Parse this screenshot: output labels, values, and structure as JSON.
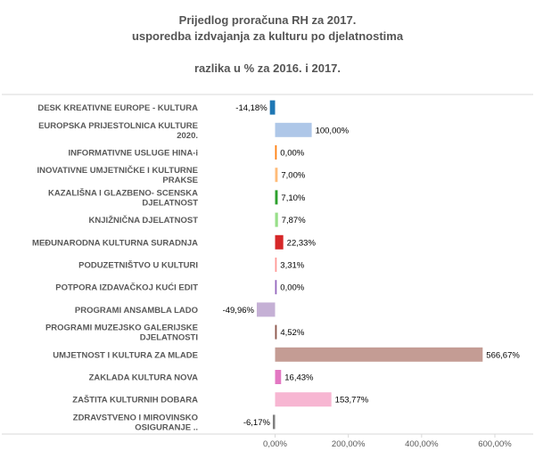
{
  "chart_data": {
    "type": "bar",
    "orientation": "horizontal",
    "title_lines": [
      "Prijedlog proračuna RH  za 2017.",
      "usporedba izdvajanja za kulturu po djelatnostima",
      "razlika u % za 2016. i 2017."
    ],
    "categories": [
      [
        "DESK KREATIVNE EUROPE - KULTURA"
      ],
      [
        "EUROPSKA PRIJESTOLNICA KULTURE",
        "2020."
      ],
      [
        "INFORMATIVNE USLUGE HINA-i"
      ],
      [
        "INOVATIVNE UMJETNIČKE I KULTURNE",
        "PRAKSE"
      ],
      [
        "KAZALIŠNA I GLAZBENO- SCENSKA",
        "DJELATNOST"
      ],
      [
        "KNJIŽNIČNA DJELATNOST"
      ],
      [
        "MEĐUNARODNA KULTURNA SURADNJA"
      ],
      [
        "PODUZETNIŠTVO U KULTURI"
      ],
      [
        "POTPORA IZDAVAČKOJ KUĆI EDIT"
      ],
      [
        "PROGRAMI ANSAMBLA LADO"
      ],
      [
        "PROGRAMI MUZEJSKO GALERIJSKE",
        "DJELATNOSTI"
      ],
      [
        "UMJETNOST I KULTURA ZA MLADE"
      ],
      [
        "ZAKLADA KULTURA NOVA"
      ],
      [
        "ZAŠTITA KULTURNIH DOBARA"
      ],
      [
        "ZDRAVSTVENO I MIROVINSKO",
        "OSIGURANJE .."
      ]
    ],
    "values": [
      -14.18,
      100.0,
      0.0,
      7.0,
      7.1,
      7.87,
      22.33,
      3.31,
      0.0,
      -49.96,
      4.52,
      566.67,
      16.43,
      153.77,
      -6.17
    ],
    "data_labels": [
      "-14,18%",
      "100,00%",
      "0,00%",
      "7,00%",
      "7,10%",
      "7,87%",
      "22,33%",
      "3,31%",
      "0,00%",
      "-49,96%",
      "4,52%",
      "566,67%",
      "16,43%",
      "153,77%",
      "-6,17%"
    ],
    "colors": [
      "#1f77b4",
      "#aec7e8",
      "#ff7f0e",
      "#ffbb78",
      "#2ca02c",
      "#98df8a",
      "#d62728",
      "#ff9896",
      "#9467bd",
      "#c5b0d5",
      "#8c564b",
      "#c49c94",
      "#e377c2",
      "#f7b6d2",
      "#7f7f7f"
    ],
    "xlim": [
      -110,
      640
    ],
    "xticks": [
      0,
      200,
      400,
      600
    ],
    "xtick_labels": [
      "0,00%",
      "200,00%",
      "400,00%",
      "600,00%"
    ],
    "grid": false
  }
}
